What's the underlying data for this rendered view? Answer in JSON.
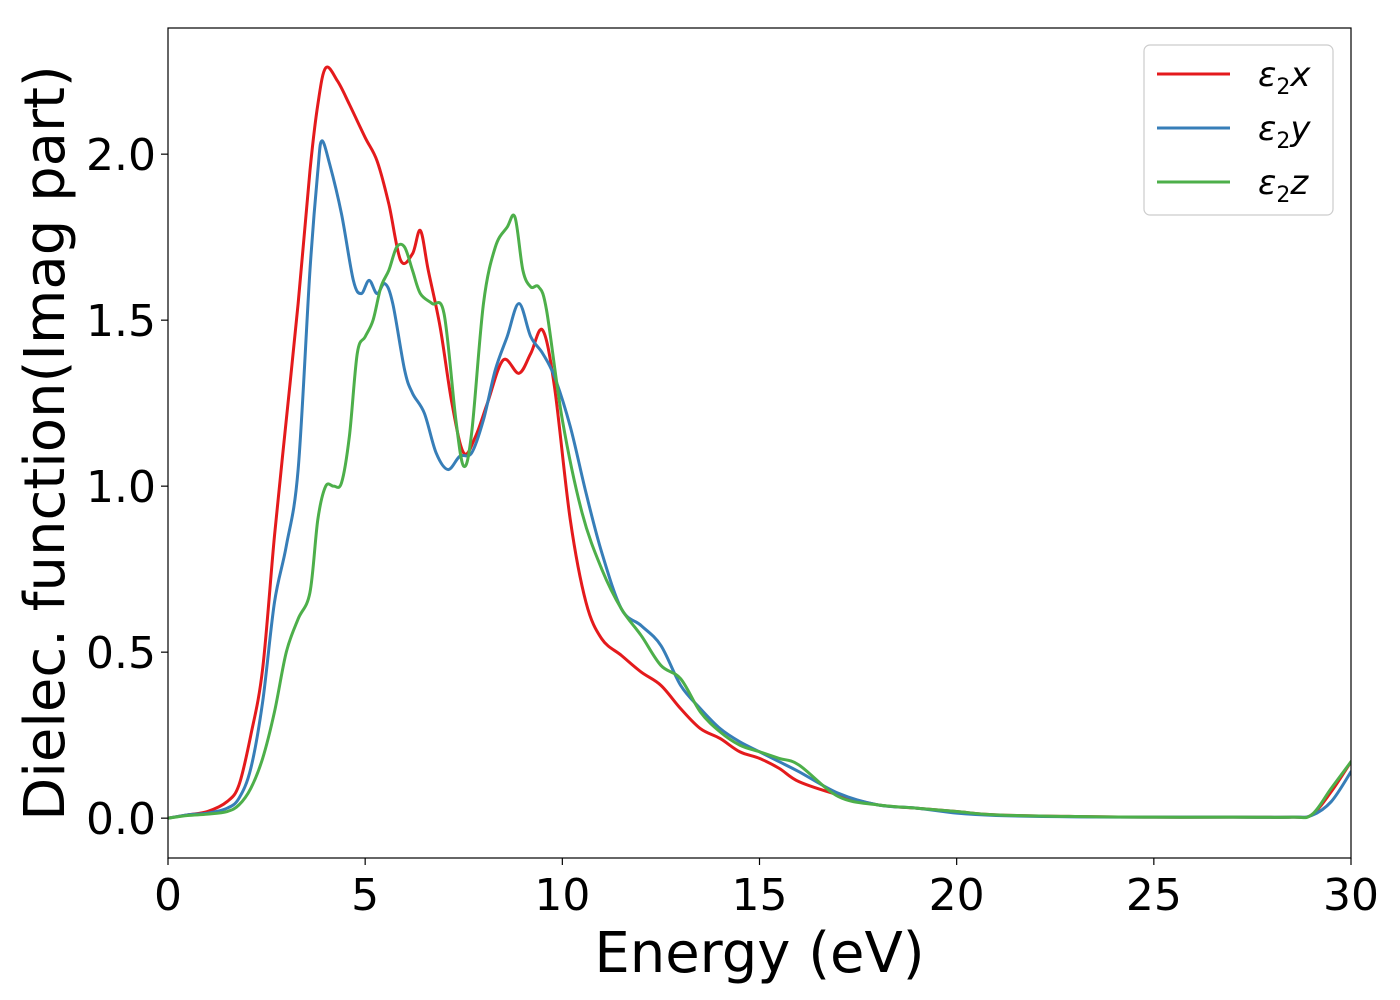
{
  "chart_data": {
    "type": "line",
    "title": "",
    "xlabel": "Energy (eV)",
    "ylabel": "Dielec. function(Imag part)",
    "xlim": [
      0,
      30
    ],
    "ylim": [
      -0.12,
      2.38
    ],
    "xticks": [
      0,
      5,
      10,
      15,
      20,
      25,
      30
    ],
    "xtick_labels": [
      "0",
      "5",
      "10",
      "15",
      "20",
      "25",
      "30"
    ],
    "yticks": [
      0.0,
      0.5,
      1.0,
      1.5,
      2.0
    ],
    "ytick_labels": [
      "0.0",
      "0.5",
      "1.0",
      "1.5",
      "2.0"
    ],
    "grid": false,
    "legend": {
      "position": "top-right"
    },
    "series": [
      {
        "name": "ε2x",
        "name_base": "ε",
        "name_sub": "2",
        "name_var": "x",
        "color": "#e41a1c",
        "x": [
          0,
          0.5,
          1.0,
          1.5,
          1.8,
          2.1,
          2.4,
          2.7,
          3.0,
          3.3,
          3.6,
          3.8,
          4.0,
          4.3,
          4.6,
          5.0,
          5.3,
          5.6,
          5.9,
          6.2,
          6.4,
          6.6,
          6.9,
          7.2,
          7.5,
          7.8,
          8.1,
          8.5,
          8.9,
          9.2,
          9.5,
          9.8,
          10.2,
          10.6,
          11.0,
          11.5,
          12.0,
          12.5,
          13.0,
          13.5,
          14.0,
          14.5,
          15.0,
          15.5,
          16.0,
          17.0,
          18.0,
          19.0,
          20.0,
          21.0,
          23.0,
          25.0,
          27.0,
          28.5,
          29.0,
          29.5,
          30.0
        ],
        "y": [
          0.0,
          0.01,
          0.02,
          0.05,
          0.1,
          0.25,
          0.45,
          0.85,
          1.2,
          1.55,
          1.95,
          2.15,
          2.26,
          2.22,
          2.15,
          2.05,
          1.98,
          1.85,
          1.68,
          1.7,
          1.77,
          1.65,
          1.48,
          1.25,
          1.1,
          1.15,
          1.25,
          1.38,
          1.34,
          1.4,
          1.47,
          1.3,
          0.9,
          0.65,
          0.54,
          0.49,
          0.44,
          0.4,
          0.33,
          0.27,
          0.24,
          0.2,
          0.18,
          0.15,
          0.11,
          0.07,
          0.04,
          0.03,
          0.02,
          0.01,
          0.005,
          0.003,
          0.003,
          0.003,
          0.01,
          0.08,
          0.17
        ]
      },
      {
        "name": "ε2y",
        "name_base": "ε",
        "name_sub": "2",
        "name_var": "y",
        "color": "#377eb8",
        "x": [
          0,
          0.5,
          1.0,
          1.5,
          1.8,
          2.1,
          2.4,
          2.7,
          3.0,
          3.3,
          3.6,
          3.8,
          3.9,
          4.1,
          4.4,
          4.7,
          4.9,
          5.1,
          5.3,
          5.5,
          5.7,
          6.0,
          6.2,
          6.5,
          6.8,
          7.1,
          7.4,
          7.7,
          8.0,
          8.3,
          8.6,
          8.9,
          9.2,
          9.5,
          9.8,
          10.2,
          10.6,
          11.0,
          11.5,
          12.0,
          12.5,
          13.0,
          13.5,
          14.0,
          14.5,
          15.0,
          15.5,
          16.0,
          17.0,
          18.0,
          19.0,
          20.0,
          21.0,
          23.0,
          25.0,
          27.0,
          28.5,
          29.0,
          29.5,
          30.0
        ],
        "y": [
          0.0,
          0.01,
          0.015,
          0.03,
          0.06,
          0.15,
          0.35,
          0.65,
          0.82,
          1.05,
          1.65,
          1.95,
          2.04,
          1.97,
          1.82,
          1.62,
          1.58,
          1.62,
          1.58,
          1.61,
          1.55,
          1.35,
          1.28,
          1.22,
          1.1,
          1.05,
          1.09,
          1.1,
          1.2,
          1.35,
          1.45,
          1.55,
          1.45,
          1.4,
          1.33,
          1.18,
          0.98,
          0.8,
          0.63,
          0.58,
          0.52,
          0.4,
          0.33,
          0.27,
          0.23,
          0.2,
          0.17,
          0.14,
          0.075,
          0.04,
          0.03,
          0.015,
          0.008,
          0.004,
          0.003,
          0.003,
          0.003,
          0.008,
          0.05,
          0.14
        ]
      },
      {
        "name": "ε2z",
        "name_base": "ε",
        "name_sub": "2",
        "name_var": "z",
        "color": "#4daf4a",
        "x": [
          0,
          0.5,
          1.0,
          1.5,
          1.8,
          2.1,
          2.4,
          2.7,
          3.0,
          3.3,
          3.6,
          3.8,
          4.0,
          4.2,
          4.4,
          4.6,
          4.8,
          5.0,
          5.2,
          5.4,
          5.6,
          5.8,
          6.0,
          6.2,
          6.4,
          6.7,
          7.0,
          7.3,
          7.5,
          7.7,
          8.0,
          8.3,
          8.6,
          8.8,
          9.0,
          9.2,
          9.4,
          9.6,
          10.0,
          10.5,
          11.0,
          11.5,
          12.0,
          12.5,
          13.0,
          13.5,
          14.0,
          14.5,
          15.0,
          15.5,
          16.0,
          17.0,
          18.0,
          19.0,
          20.0,
          21.0,
          23.0,
          25.0,
          27.0,
          28.5,
          29.0,
          29.5,
          30.0
        ],
        "y": [
          0.0,
          0.008,
          0.012,
          0.02,
          0.04,
          0.09,
          0.18,
          0.32,
          0.5,
          0.6,
          0.68,
          0.9,
          1.0,
          1.0,
          1.01,
          1.15,
          1.4,
          1.45,
          1.5,
          1.6,
          1.65,
          1.72,
          1.72,
          1.65,
          1.58,
          1.55,
          1.52,
          1.2,
          1.06,
          1.16,
          1.55,
          1.72,
          1.78,
          1.81,
          1.65,
          1.6,
          1.6,
          1.53,
          1.2,
          0.92,
          0.75,
          0.63,
          0.55,
          0.46,
          0.42,
          0.32,
          0.26,
          0.22,
          0.2,
          0.18,
          0.16,
          0.065,
          0.04,
          0.03,
          0.02,
          0.01,
          0.005,
          0.003,
          0.003,
          0.003,
          0.01,
          0.09,
          0.17
        ]
      }
    ]
  }
}
